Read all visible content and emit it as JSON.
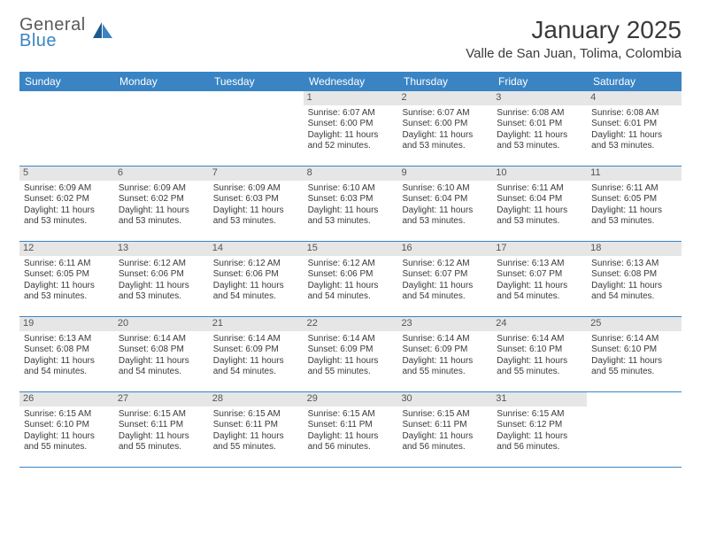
{
  "brand": {
    "top": "General",
    "bottom": "Blue"
  },
  "title": "January 2025",
  "location": "Valle de San Juan, Tolima, Colombia",
  "colors": {
    "header_bg": "#3a84c4",
    "header_text": "#ffffff",
    "daynum_bg": "#e6e6e6",
    "border": "#3a84c4",
    "text": "#3a3a3a"
  },
  "weekdays": [
    "Sunday",
    "Monday",
    "Tuesday",
    "Wednesday",
    "Thursday",
    "Friday",
    "Saturday"
  ],
  "weeks": [
    [
      {
        "n": "",
        "sr": "",
        "ss": "",
        "dl1": "",
        "dl2": "",
        "empty": true
      },
      {
        "n": "",
        "sr": "",
        "ss": "",
        "dl1": "",
        "dl2": "",
        "empty": true
      },
      {
        "n": "",
        "sr": "",
        "ss": "",
        "dl1": "",
        "dl2": "",
        "empty": true
      },
      {
        "n": "1",
        "sr": "Sunrise: 6:07 AM",
        "ss": "Sunset: 6:00 PM",
        "dl1": "Daylight: 11 hours",
        "dl2": "and 52 minutes."
      },
      {
        "n": "2",
        "sr": "Sunrise: 6:07 AM",
        "ss": "Sunset: 6:00 PM",
        "dl1": "Daylight: 11 hours",
        "dl2": "and 53 minutes."
      },
      {
        "n": "3",
        "sr": "Sunrise: 6:08 AM",
        "ss": "Sunset: 6:01 PM",
        "dl1": "Daylight: 11 hours",
        "dl2": "and 53 minutes."
      },
      {
        "n": "4",
        "sr": "Sunrise: 6:08 AM",
        "ss": "Sunset: 6:01 PM",
        "dl1": "Daylight: 11 hours",
        "dl2": "and 53 minutes."
      }
    ],
    [
      {
        "n": "5",
        "sr": "Sunrise: 6:09 AM",
        "ss": "Sunset: 6:02 PM",
        "dl1": "Daylight: 11 hours",
        "dl2": "and 53 minutes."
      },
      {
        "n": "6",
        "sr": "Sunrise: 6:09 AM",
        "ss": "Sunset: 6:02 PM",
        "dl1": "Daylight: 11 hours",
        "dl2": "and 53 minutes."
      },
      {
        "n": "7",
        "sr": "Sunrise: 6:09 AM",
        "ss": "Sunset: 6:03 PM",
        "dl1": "Daylight: 11 hours",
        "dl2": "and 53 minutes."
      },
      {
        "n": "8",
        "sr": "Sunrise: 6:10 AM",
        "ss": "Sunset: 6:03 PM",
        "dl1": "Daylight: 11 hours",
        "dl2": "and 53 minutes."
      },
      {
        "n": "9",
        "sr": "Sunrise: 6:10 AM",
        "ss": "Sunset: 6:04 PM",
        "dl1": "Daylight: 11 hours",
        "dl2": "and 53 minutes."
      },
      {
        "n": "10",
        "sr": "Sunrise: 6:11 AM",
        "ss": "Sunset: 6:04 PM",
        "dl1": "Daylight: 11 hours",
        "dl2": "and 53 minutes."
      },
      {
        "n": "11",
        "sr": "Sunrise: 6:11 AM",
        "ss": "Sunset: 6:05 PM",
        "dl1": "Daylight: 11 hours",
        "dl2": "and 53 minutes."
      }
    ],
    [
      {
        "n": "12",
        "sr": "Sunrise: 6:11 AM",
        "ss": "Sunset: 6:05 PM",
        "dl1": "Daylight: 11 hours",
        "dl2": "and 53 minutes."
      },
      {
        "n": "13",
        "sr": "Sunrise: 6:12 AM",
        "ss": "Sunset: 6:06 PM",
        "dl1": "Daylight: 11 hours",
        "dl2": "and 53 minutes."
      },
      {
        "n": "14",
        "sr": "Sunrise: 6:12 AM",
        "ss": "Sunset: 6:06 PM",
        "dl1": "Daylight: 11 hours",
        "dl2": "and 54 minutes."
      },
      {
        "n": "15",
        "sr": "Sunrise: 6:12 AM",
        "ss": "Sunset: 6:06 PM",
        "dl1": "Daylight: 11 hours",
        "dl2": "and 54 minutes."
      },
      {
        "n": "16",
        "sr": "Sunrise: 6:12 AM",
        "ss": "Sunset: 6:07 PM",
        "dl1": "Daylight: 11 hours",
        "dl2": "and 54 minutes."
      },
      {
        "n": "17",
        "sr": "Sunrise: 6:13 AM",
        "ss": "Sunset: 6:07 PM",
        "dl1": "Daylight: 11 hours",
        "dl2": "and 54 minutes."
      },
      {
        "n": "18",
        "sr": "Sunrise: 6:13 AM",
        "ss": "Sunset: 6:08 PM",
        "dl1": "Daylight: 11 hours",
        "dl2": "and 54 minutes."
      }
    ],
    [
      {
        "n": "19",
        "sr": "Sunrise: 6:13 AM",
        "ss": "Sunset: 6:08 PM",
        "dl1": "Daylight: 11 hours",
        "dl2": "and 54 minutes."
      },
      {
        "n": "20",
        "sr": "Sunrise: 6:14 AM",
        "ss": "Sunset: 6:08 PM",
        "dl1": "Daylight: 11 hours",
        "dl2": "and 54 minutes."
      },
      {
        "n": "21",
        "sr": "Sunrise: 6:14 AM",
        "ss": "Sunset: 6:09 PM",
        "dl1": "Daylight: 11 hours",
        "dl2": "and 54 minutes."
      },
      {
        "n": "22",
        "sr": "Sunrise: 6:14 AM",
        "ss": "Sunset: 6:09 PM",
        "dl1": "Daylight: 11 hours",
        "dl2": "and 55 minutes."
      },
      {
        "n": "23",
        "sr": "Sunrise: 6:14 AM",
        "ss": "Sunset: 6:09 PM",
        "dl1": "Daylight: 11 hours",
        "dl2": "and 55 minutes."
      },
      {
        "n": "24",
        "sr": "Sunrise: 6:14 AM",
        "ss": "Sunset: 6:10 PM",
        "dl1": "Daylight: 11 hours",
        "dl2": "and 55 minutes."
      },
      {
        "n": "25",
        "sr": "Sunrise: 6:14 AM",
        "ss": "Sunset: 6:10 PM",
        "dl1": "Daylight: 11 hours",
        "dl2": "and 55 minutes."
      }
    ],
    [
      {
        "n": "26",
        "sr": "Sunrise: 6:15 AM",
        "ss": "Sunset: 6:10 PM",
        "dl1": "Daylight: 11 hours",
        "dl2": "and 55 minutes."
      },
      {
        "n": "27",
        "sr": "Sunrise: 6:15 AM",
        "ss": "Sunset: 6:11 PM",
        "dl1": "Daylight: 11 hours",
        "dl2": "and 55 minutes."
      },
      {
        "n": "28",
        "sr": "Sunrise: 6:15 AM",
        "ss": "Sunset: 6:11 PM",
        "dl1": "Daylight: 11 hours",
        "dl2": "and 55 minutes."
      },
      {
        "n": "29",
        "sr": "Sunrise: 6:15 AM",
        "ss": "Sunset: 6:11 PM",
        "dl1": "Daylight: 11 hours",
        "dl2": "and 56 minutes."
      },
      {
        "n": "30",
        "sr": "Sunrise: 6:15 AM",
        "ss": "Sunset: 6:11 PM",
        "dl1": "Daylight: 11 hours",
        "dl2": "and 56 minutes."
      },
      {
        "n": "31",
        "sr": "Sunrise: 6:15 AM",
        "ss": "Sunset: 6:12 PM",
        "dl1": "Daylight: 11 hours",
        "dl2": "and 56 minutes."
      },
      {
        "n": "",
        "sr": "",
        "ss": "",
        "dl1": "",
        "dl2": "",
        "empty": true
      }
    ]
  ]
}
